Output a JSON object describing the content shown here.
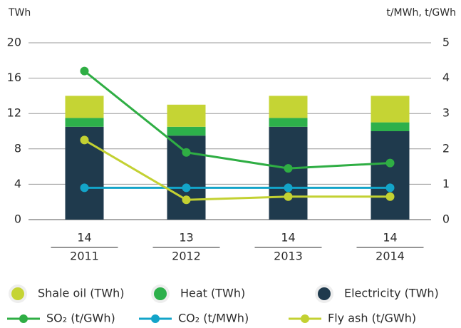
{
  "chart_data": {
    "type": "bar",
    "y_label": "TWh",
    "y2_label": "t/MWh, t/GWh",
    "categories": [
      "2011",
      "2012",
      "2013",
      "2014"
    ],
    "totals": [
      14,
      13,
      14,
      14
    ],
    "ylim": [
      0,
      20
    ],
    "yticks": [
      0,
      4,
      8,
      12,
      16,
      20
    ],
    "y2lim": [
      0,
      5
    ],
    "y2ticks": [
      0,
      1,
      2,
      3,
      4,
      5
    ],
    "grid": true,
    "series": [
      {
        "name": "Shale oil (TWh)",
        "type": "bar",
        "color": "#c5d434",
        "values": [
          2.5,
          2.5,
          2.5,
          3
        ]
      },
      {
        "name": "Heat (TWh)",
        "type": "bar",
        "color": "#2db04b",
        "values": [
          1,
          1,
          1,
          1
        ]
      },
      {
        "name": "Electricity (TWh)",
        "type": "bar",
        "color": "#1f3a4d",
        "values": [
          10.5,
          9.5,
          10.5,
          10
        ]
      },
      {
        "name": "SO₂ (t/GWh)",
        "type": "line",
        "axis": "y2",
        "color": "#2fae44",
        "values": [
          4.2,
          1.9,
          1.45,
          1.6
        ]
      },
      {
        "name": "CO₂ (t/MWh)",
        "type": "line",
        "axis": "y2",
        "color": "#13a4c9",
        "values": [
          0.9,
          0.9,
          0.9,
          0.9
        ]
      },
      {
        "name": "Fly ash (t/GWh)",
        "type": "line",
        "axis": "y2",
        "color": "#c3d132",
        "values": [
          2.25,
          0.56,
          0.65,
          0.65
        ]
      }
    ]
  }
}
